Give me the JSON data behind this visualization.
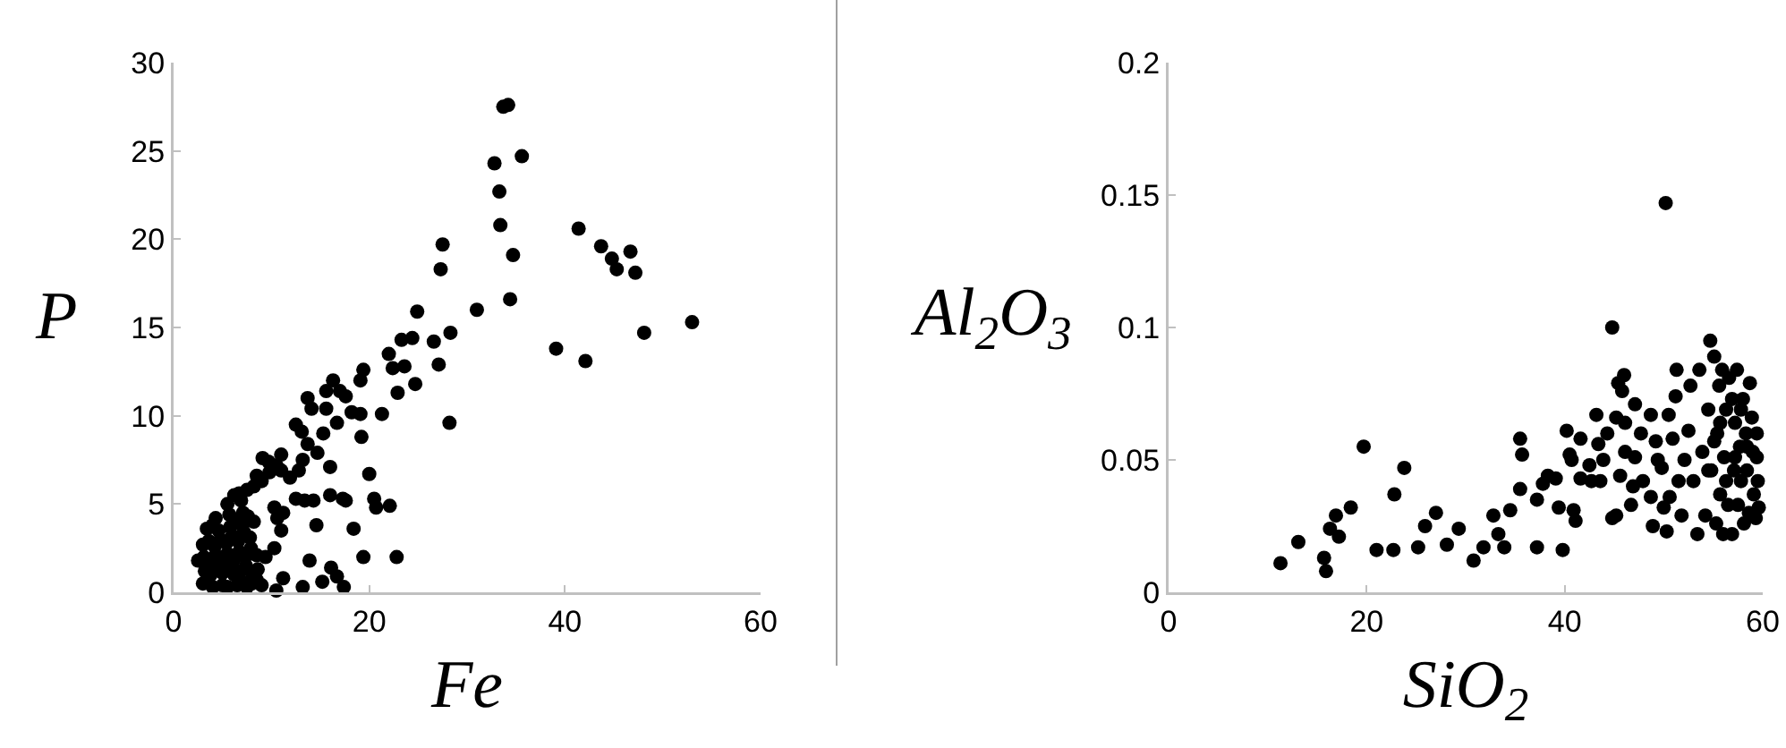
{
  "chart_data": [
    {
      "type": "scatter",
      "xlabel": "Fe",
      "ylabel": "P",
      "marker": "circle",
      "grid": false,
      "xlim": [
        0,
        60
      ],
      "xticks": [
        0,
        20,
        40,
        60
      ],
      "ylim": [
        0,
        30
      ],
      "yticks": [
        0,
        5,
        10,
        15,
        20,
        25,
        30
      ],
      "series": [
        {
          "color": "#000000",
          "x": [
            33.7,
            34.2,
            32.8,
            35.6,
            33.3,
            33.4,
            34.7,
            34.4,
            31.0,
            27.5,
            27.3,
            28.3,
            26.6,
            27.1,
            28.2,
            24.9,
            24.4,
            23.3,
            22.0,
            22.4,
            23.6,
            22.9,
            24.7,
            21.3,
            19.4,
            19.1,
            19.1,
            19.2,
            20.0,
            20.5,
            20.7,
            22.1,
            22.8,
            19.4,
            18.4,
            17.3,
            16.0,
            16.0,
            14.6,
            13.9,
            16.1,
            16.7,
            17.4,
            15.2,
            13.2,
            11.2,
            10.5,
            39.1,
            42.1,
            41.4,
            43.7,
            44.8,
            45.3,
            46.7,
            47.2,
            48.1,
            53.0,
            16.3,
            15.6,
            17.0,
            17.6,
            18.2,
            13.7,
            14.1,
            15.6,
            16.7,
            12.5,
            13.1,
            15.3,
            13.7,
            14.7,
            11.0,
            9.1,
            9.7,
            13.2,
            12.8,
            8.5,
            11.0,
            11.9,
            12.5,
            13.4,
            14.3,
            17.6,
            6.7,
            10.3,
            10.6,
            11.0,
            10.3,
            9.4,
            11.2,
            3.0,
            4.0,
            5.0,
            5.5,
            6.5,
            7.0,
            7.5,
            8.0,
            8.5,
            9.0,
            3.2,
            3.8,
            4.4,
            5.0,
            5.6,
            6.2,
            6.8,
            7.4,
            8.0,
            8.6,
            2.5,
            3.1,
            3.7,
            4.3,
            4.9,
            5.5,
            6.1,
            6.7,
            7.3,
            7.9,
            8.5,
            3.0,
            3.6,
            4.2,
            4.8,
            5.4,
            6.0,
            6.6,
            7.2,
            7.8,
            3.4,
            4.0,
            4.6,
            5.8,
            6.4,
            7.0,
            7.6,
            8.2,
            4.3,
            5.7,
            7.1,
            5.5,
            6.2,
            6.9,
            7.5,
            8.2,
            9.0,
            9.8,
            10.5
          ],
          "values": [
            27.5,
            27.6,
            24.3,
            24.7,
            22.7,
            20.8,
            19.1,
            16.6,
            16.0,
            19.7,
            18.3,
            14.7,
            14.2,
            12.9,
            9.6,
            15.9,
            14.4,
            14.3,
            13.5,
            12.7,
            12.8,
            11.3,
            11.8,
            10.1,
            12.6,
            12.0,
            10.1,
            8.8,
            6.7,
            5.3,
            4.8,
            4.9,
            2.0,
            2.0,
            3.6,
            5.3,
            7.1,
            5.5,
            3.8,
            1.8,
            1.4,
            0.9,
            0.3,
            0.6,
            0.3,
            0.8,
            0.1,
            13.8,
            13.1,
            20.6,
            19.6,
            18.9,
            18.3,
            19.3,
            18.1,
            14.7,
            15.3,
            12.0,
            11.4,
            11.4,
            11.1,
            10.2,
            11.0,
            10.4,
            10.4,
            9.6,
            9.5,
            9.1,
            9.0,
            8.4,
            7.9,
            7.8,
            7.6,
            7.4,
            7.5,
            6.9,
            6.6,
            6.9,
            6.5,
            5.3,
            5.2,
            5.2,
            5.2,
            5.6,
            4.8,
            4.2,
            3.5,
            2.5,
            2.0,
            4.5,
            0.5,
            0.3,
            0.4,
            0.3,
            0.4,
            0.6,
            0.3,
            0.5,
            0.7,
            0.4,
            1.2,
            1.0,
            1.3,
            1.1,
            1.4,
            1.0,
            1.2,
            1.5,
            1.1,
            1.3,
            1.8,
            2.0,
            1.7,
            2.1,
            1.9,
            2.2,
            1.8,
            2.3,
            2.0,
            2.5,
            2.1,
            2.7,
            2.9,
            2.6,
            3.0,
            2.8,
            3.2,
            2.9,
            3.4,
            3.1,
            3.6,
            3.8,
            3.5,
            3.7,
            4.1,
            3.8,
            4.3,
            4.0,
            4.2,
            4.4,
            4.5,
            5.0,
            5.5,
            5.2,
            5.8,
            6.0,
            6.3,
            6.8,
            7.2
          ]
        }
      ]
    },
    {
      "type": "scatter",
      "xlabel": "SiO$_{2}$",
      "ylabel": "Al$_{2}$O$_{3}$",
      "marker": "circle",
      "grid": false,
      "xlim": [
        0,
        60
      ],
      "xticks": [
        0,
        20,
        40,
        60
      ],
      "ylim": [
        0,
        0.2
      ],
      "yticks": [
        0,
        0.05,
        0.1,
        0.15,
        0.2
      ],
      "series": [
        {
          "color": "#000000",
          "x": [
            11.3,
            13.1,
            15.7,
            15.9,
            16.3,
            16.9,
            17.2,
            18.4,
            19.7,
            21.0,
            22.7,
            22.8,
            23.8,
            25.2,
            25.9,
            27.0,
            28.1,
            29.3,
            30.8,
            31.8,
            32.8,
            33.3,
            33.9,
            34.5,
            35.5,
            35.5,
            35.7,
            37.2,
            37.2,
            37.8,
            38.3,
            39.1,
            39.4,
            39.8,
            40.2,
            40.5,
            40.7,
            40.9,
            41.1,
            41.6,
            41.6,
            42.5,
            42.7,
            43.2,
            43.4,
            43.6,
            43.9,
            44.3,
            44.8,
            44.8,
            45.2,
            45.2,
            45.6,
            45.4,
            46.0,
            45.8,
            46.1,
            46.1,
            46.7,
            46.9,
            47.1,
            47.1,
            47.7,
            47.9,
            48.7,
            48.7,
            48.9,
            49.2,
            49.4,
            49.8,
            50.0,
            50.2,
            50.3,
            50.5,
            50.6,
            50.9,
            51.2,
            51.3,
            51.5,
            51.8,
            52.1,
            52.5,
            52.7,
            53.0,
            53.4,
            53.6,
            53.9,
            54.2,
            54.5,
            54.7,
            54.8,
            55.1,
            55.3,
            55.4,
            55.6,
            55.7,
            55.9,
            56.0,
            56.1,
            56.3,
            56.5,
            56.6,
            56.9,
            57.1,
            57.2,
            57.4,
            57.5,
            57.7,
            57.8,
            58.0,
            58.1,
            58.3,
            58.4,
            58.6,
            58.7,
            58.9,
            59.0,
            59.1,
            59.3,
            59.4,
            59.4,
            59.5,
            59.6,
            55.1,
            55.7,
            54.5,
            56.3,
            57.2,
            57.8,
            56.9,
            58.4
          ],
          "values": [
            0.011,
            0.019,
            0.013,
            0.008,
            0.024,
            0.029,
            0.021,
            0.032,
            0.055,
            0.016,
            0.016,
            0.037,
            0.047,
            0.017,
            0.025,
            0.03,
            0.018,
            0.024,
            0.012,
            0.017,
            0.029,
            0.022,
            0.017,
            0.031,
            0.039,
            0.058,
            0.052,
            0.017,
            0.035,
            0.041,
            0.044,
            0.043,
            0.032,
            0.016,
            0.061,
            0.052,
            0.05,
            0.031,
            0.027,
            0.058,
            0.043,
            0.048,
            0.042,
            0.067,
            0.056,
            0.042,
            0.05,
            0.06,
            0.1,
            0.028,
            0.029,
            0.066,
            0.044,
            0.079,
            0.082,
            0.076,
            0.064,
            0.053,
            0.033,
            0.04,
            0.071,
            0.051,
            0.06,
            0.042,
            0.067,
            0.036,
            0.025,
            0.057,
            0.05,
            0.047,
            0.032,
            0.147,
            0.023,
            0.067,
            0.036,
            0.058,
            0.074,
            0.084,
            0.042,
            0.029,
            0.05,
            0.061,
            0.078,
            0.042,
            0.022,
            0.084,
            0.053,
            0.029,
            0.069,
            0.095,
            0.046,
            0.089,
            0.026,
            0.06,
            0.078,
            0.037,
            0.084,
            0.022,
            0.051,
            0.069,
            0.033,
            0.081,
            0.022,
            0.046,
            0.064,
            0.084,
            0.033,
            0.055,
            0.042,
            0.073,
            0.026,
            0.06,
            0.046,
            0.03,
            0.079,
            0.066,
            0.053,
            0.037,
            0.028,
            0.051,
            0.06,
            0.042,
            0.032,
            0.057,
            0.064,
            0.046,
            0.042,
            0.051,
            0.069,
            0.073,
            0.055
          ]
        }
      ]
    }
  ]
}
